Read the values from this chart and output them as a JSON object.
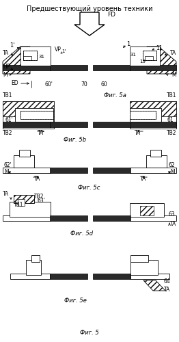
{
  "title": "Предшествующий уровень техники",
  "fig_labels": [
    "Фиг. 5а",
    "Фиг. 5b",
    "Фиг. 5c",
    "Фиг. 5d",
    "Фиг. 5e",
    "Фиг. 5"
  ],
  "bg_color": "#ffffff",
  "lc": "#000000",
  "dark": "#2a2a2a",
  "gray": "#888888"
}
